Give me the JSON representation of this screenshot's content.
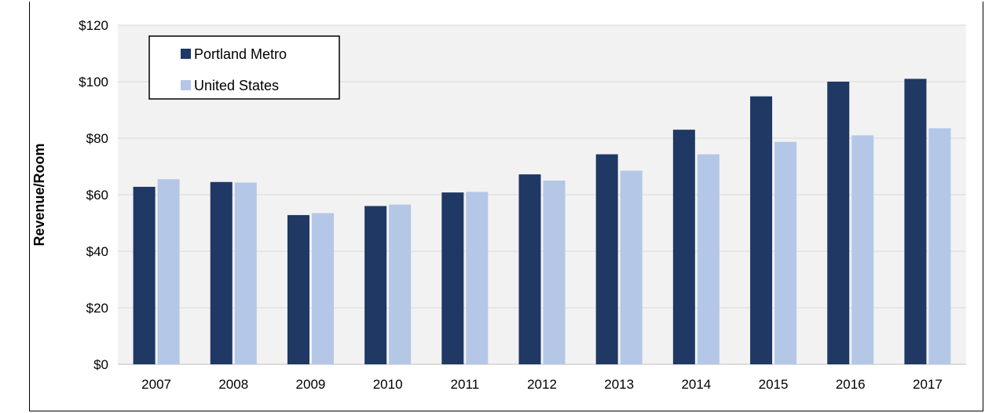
{
  "chart_data": {
    "type": "bar",
    "title": "",
    "xlabel": "",
    "ylabel": "Revenue/Room",
    "ylim": [
      0,
      120
    ],
    "ytick_step": 20,
    "ytick_prefix": "$",
    "grid": true,
    "legend_position": "top-left",
    "plot_background": "#f2f2f2",
    "categories": [
      "2007",
      "2008",
      "2009",
      "2010",
      "2011",
      "2012",
      "2013",
      "2014",
      "2015",
      "2016",
      "2017"
    ],
    "series": [
      {
        "name": "Portland Metro",
        "color": "#1f3864",
        "values": [
          62.8,
          64.5,
          52.8,
          56.0,
          60.8,
          67.2,
          74.3,
          83.0,
          94.8,
          100.0,
          101.0
        ]
      },
      {
        "name": "United States",
        "color": "#b4c7e7",
        "values": [
          65.5,
          64.3,
          53.5,
          56.5,
          61.0,
          65.0,
          68.5,
          74.3,
          78.7,
          81.0,
          83.5
        ]
      }
    ]
  }
}
